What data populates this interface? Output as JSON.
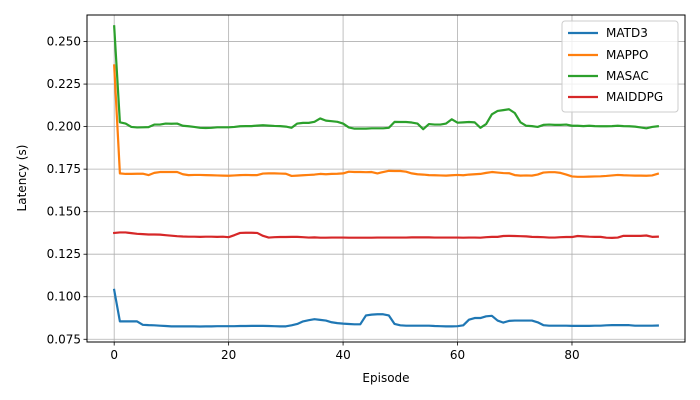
{
  "chart_data": {
    "type": "line",
    "xlabel": "Episode",
    "ylabel": "Latency (s)",
    "xlim": [
      -4.75,
      99.75
    ],
    "ylim": [
      0.0734,
      0.2656
    ],
    "xticks": [
      0,
      20,
      40,
      60,
      80
    ],
    "yticks": [
      0.075,
      0.1,
      0.125,
      0.15,
      0.175,
      0.2,
      0.225,
      0.25
    ],
    "ytick_labels": [
      "0.075",
      "0.100",
      "0.125",
      "0.150",
      "0.175",
      "0.200",
      "0.225",
      "0.250"
    ],
    "grid": true,
    "legend_position": "top-right",
    "x": [
      0,
      1,
      2,
      3,
      4,
      5,
      6,
      7,
      8,
      9,
      10,
      11,
      12,
      13,
      14,
      15,
      16,
      17,
      18,
      19,
      20,
      21,
      22,
      23,
      24,
      25,
      26,
      27,
      28,
      29,
      30,
      31,
      32,
      33,
      34,
      35,
      36,
      37,
      38,
      39,
      40,
      41,
      42,
      43,
      44,
      45,
      46,
      47,
      48,
      49,
      50,
      51,
      52,
      53,
      54,
      55,
      56,
      57,
      58,
      59,
      60,
      61,
      62,
      63,
      64,
      65,
      66,
      67,
      68,
      69,
      70,
      71,
      72,
      73,
      74,
      75,
      76,
      77,
      78,
      79,
      80,
      81,
      82,
      83,
      84,
      85,
      86,
      87,
      88,
      89,
      90,
      91,
      92,
      93,
      94,
      95
    ],
    "series": [
      {
        "name": "MATD3",
        "color": "#1f77b4",
        "values": [
          0.104,
          0.0855,
          0.0855,
          0.0855,
          0.0855,
          0.0835,
          0.0833,
          0.0832,
          0.083,
          0.0828,
          0.0826,
          0.0826,
          0.0826,
          0.0826,
          0.0826,
          0.0825,
          0.0826,
          0.0826,
          0.0827,
          0.0827,
          0.0827,
          0.0827,
          0.0828,
          0.0828,
          0.0829,
          0.0829,
          0.0829,
          0.0828,
          0.0827,
          0.0826,
          0.0826,
          0.0832,
          0.084,
          0.0855,
          0.0862,
          0.0868,
          0.0864,
          0.086,
          0.085,
          0.0845,
          0.0842,
          0.084,
          0.0838,
          0.0838,
          0.089,
          0.0895,
          0.0897,
          0.0897,
          0.089,
          0.084,
          0.0832,
          0.083,
          0.083,
          0.083,
          0.083,
          0.083,
          0.0828,
          0.0827,
          0.0826,
          0.0826,
          0.0827,
          0.0832,
          0.0865,
          0.0875,
          0.0875,
          0.0885,
          0.0888,
          0.086,
          0.0848,
          0.0858,
          0.086,
          0.086,
          0.086,
          0.086,
          0.085,
          0.0833,
          0.083,
          0.083,
          0.083,
          0.083,
          0.0829,
          0.0829,
          0.0829,
          0.0829,
          0.083,
          0.083,
          0.0832,
          0.0833,
          0.0833,
          0.0833,
          0.0833,
          0.083,
          0.083,
          0.083,
          0.083,
          0.0831
        ]
      },
      {
        "name": "MAPPO",
        "color": "#ff7f0e",
        "values": [
          0.236,
          0.1725,
          0.1722,
          0.1722,
          0.1723,
          0.1723,
          0.1715,
          0.1728,
          0.1733,
          0.1733,
          0.1733,
          0.1733,
          0.172,
          0.1715,
          0.1716,
          0.1716,
          0.1715,
          0.1714,
          0.1713,
          0.1712,
          0.1711,
          0.1713,
          0.1715,
          0.1716,
          0.1715,
          0.1715,
          0.1724,
          0.1725,
          0.1725,
          0.1724,
          0.1723,
          0.171,
          0.1712,
          0.1714,
          0.1716,
          0.1718,
          0.1722,
          0.172,
          0.1722,
          0.1723,
          0.1725,
          0.1735,
          0.1733,
          0.1733,
          0.1732,
          0.1733,
          0.1725,
          0.1733,
          0.174,
          0.1739,
          0.1739,
          0.1735,
          0.1725,
          0.172,
          0.1718,
          0.1715,
          0.1714,
          0.1713,
          0.1712,
          0.1714,
          0.1716,
          0.1714,
          0.1718,
          0.172,
          0.1722,
          0.1728,
          0.1733,
          0.173,
          0.1727,
          0.1726,
          0.1715,
          0.1712,
          0.1713,
          0.1712,
          0.1718,
          0.173,
          0.1732,
          0.1732,
          0.1728,
          0.1718,
          0.1707,
          0.1705,
          0.1705,
          0.1706,
          0.1707,
          0.1708,
          0.171,
          0.1713,
          0.1716,
          0.1714,
          0.1713,
          0.1712,
          0.1712,
          0.1711,
          0.1713,
          0.1723
        ]
      },
      {
        "name": "MASAC",
        "color": "#2ca02c",
        "values": [
          0.259,
          0.2025,
          0.2018,
          0.1998,
          0.1995,
          0.1996,
          0.1997,
          0.2012,
          0.2012,
          0.2018,
          0.2017,
          0.2018,
          0.2005,
          0.2002,
          0.1998,
          0.1993,
          0.1992,
          0.1993,
          0.1996,
          0.1996,
          0.1996,
          0.1998,
          0.2002,
          0.2003,
          0.2003,
          0.2006,
          0.2008,
          0.2006,
          0.2004,
          0.2003,
          0.2,
          0.1993,
          0.2018,
          0.2022,
          0.2022,
          0.2028,
          0.2048,
          0.2035,
          0.2032,
          0.2028,
          0.2018,
          0.1995,
          0.1988,
          0.1988,
          0.1988,
          0.199,
          0.199,
          0.199,
          0.1993,
          0.2028,
          0.2027,
          0.2027,
          0.2024,
          0.2018,
          0.1985,
          0.2015,
          0.2012,
          0.2012,
          0.2018,
          0.2043,
          0.2023,
          0.2025,
          0.2027,
          0.2025,
          0.1993,
          0.2015,
          0.2072,
          0.2092,
          0.2097,
          0.2102,
          0.208,
          0.2025,
          0.2005,
          0.2003,
          0.1998,
          0.201,
          0.2012,
          0.201,
          0.201,
          0.2012,
          0.2005,
          0.2005,
          0.2003,
          0.2005,
          0.2003,
          0.2002,
          0.2002,
          0.2003,
          0.2005,
          0.2003,
          0.2002,
          0.2,
          0.1995,
          0.199,
          0.1998,
          0.2002
        ]
      },
      {
        "name": "MAIDDPG",
        "color": "#d62728",
        "values": [
          0.1375,
          0.1378,
          0.1378,
          0.1374,
          0.137,
          0.1368,
          0.1366,
          0.1366,
          0.1365,
          0.1362,
          0.1359,
          0.1356,
          0.1354,
          0.1353,
          0.1353,
          0.1352,
          0.1353,
          0.1353,
          0.1352,
          0.1353,
          0.135,
          0.1362,
          0.1375,
          0.1376,
          0.1376,
          0.1375,
          0.1358,
          0.1348,
          0.135,
          0.1351,
          0.1351,
          0.1352,
          0.1352,
          0.135,
          0.1348,
          0.1349,
          0.1347,
          0.1347,
          0.1348,
          0.1348,
          0.1348,
          0.1347,
          0.1347,
          0.1347,
          0.1347,
          0.1347,
          0.1348,
          0.1348,
          0.1348,
          0.1348,
          0.1348,
          0.1348,
          0.1349,
          0.1349,
          0.1349,
          0.1349,
          0.1348,
          0.1348,
          0.1348,
          0.1348,
          0.1348,
          0.1347,
          0.1348,
          0.1348,
          0.1347,
          0.135,
          0.1352,
          0.1352,
          0.1357,
          0.1358,
          0.1357,
          0.1356,
          0.1355,
          0.1352,
          0.1351,
          0.135,
          0.1348,
          0.1348,
          0.135,
          0.1351,
          0.1351,
          0.1357,
          0.1355,
          0.1353,
          0.1352,
          0.1352,
          0.1347,
          0.1346,
          0.1348,
          0.1358,
          0.1358,
          0.1358,
          0.1358,
          0.136,
          0.1352,
          0.1353
        ]
      }
    ]
  }
}
